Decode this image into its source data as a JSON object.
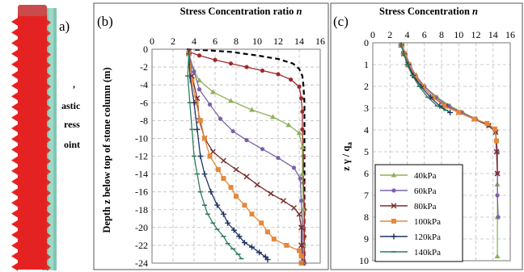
{
  "panel_a": {
    "label": "a)",
    "partial_text": [
      "astic",
      "ress",
      "oint"
    ]
  },
  "chart_data": [
    {
      "type": "line",
      "panel_label": "(b)",
      "title": "Stress Concentration ratio",
      "title_italic": "n",
      "ylabel": "Depth z below top of stone column (m)",
      "xlim": [
        0,
        16
      ],
      "ylim": [
        -24,
        0
      ],
      "x_ticks": [
        0,
        2,
        4,
        6,
        8,
        10,
        12,
        14,
        16
      ],
      "y_ticks": [
        0,
        -2,
        -4,
        -6,
        -8,
        -10,
        -12,
        -14,
        -16,
        -18,
        -20,
        -22,
        -24
      ],
      "x_axis_position": "top",
      "grid": true,
      "series": [
        {
          "color": "#000000",
          "dash": true,
          "marker": "none",
          "points": [
            [
              3.3,
              0
            ],
            [
              5,
              -0.1
            ],
            [
              7.5,
              -0.3
            ],
            [
              10,
              -0.7
            ],
            [
              12,
              -1.1
            ],
            [
              13.4,
              -1.6
            ],
            [
              14,
              -2.2
            ],
            [
              14.3,
              -3
            ],
            [
              14.4,
              -4
            ],
            [
              14.5,
              -6
            ],
            [
              14.5,
              -10
            ],
            [
              14.5,
              -16
            ],
            [
              14.5,
              -22
            ],
            [
              14.5,
              -24
            ]
          ]
        },
        {
          "color": "#9e2a2b",
          "marker": "circle",
          "points": [
            [
              3.5,
              -0.3
            ],
            [
              4.5,
              -0.7
            ],
            [
              6,
              -1.2
            ],
            [
              7.5,
              -1.6
            ],
            [
              9,
              -2
            ],
            [
              10.5,
              -2.4
            ],
            [
              12,
              -2.8
            ],
            [
              13.2,
              -3.4
            ],
            [
              14,
              -4.2
            ],
            [
              14.2,
              -5.5
            ],
            [
              14.3,
              -7
            ],
            [
              14.3,
              -9
            ],
            [
              14.4,
              -12
            ],
            [
              14.4,
              -15
            ],
            [
              14.5,
              -18
            ],
            [
              14.5,
              -21
            ],
            [
              14.5,
              -24
            ]
          ]
        },
        {
          "color": "#8fb05a",
          "marker": "triangle",
          "points": [
            [
              3.5,
              -0.5
            ],
            [
              3.8,
              -2
            ],
            [
              4.5,
              -3.5
            ],
            [
              5.8,
              -4.8
            ],
            [
              7.5,
              -5.8
            ],
            [
              9.5,
              -6.8
            ],
            [
              11.5,
              -7.6
            ],
            [
              13,
              -8.5
            ],
            [
              14,
              -9.4
            ],
            [
              14.3,
              -11
            ],
            [
              14.3,
              -14
            ],
            [
              14.4,
              -18
            ],
            [
              14.4,
              -22
            ],
            [
              14.4,
              -24
            ]
          ]
        },
        {
          "color": "#7b62a8",
          "marker": "circle",
          "points": [
            [
              3.5,
              -0.5
            ],
            [
              4,
              -2.5
            ],
            [
              4.5,
              -4.5
            ],
            [
              5.5,
              -6.2
            ],
            [
              6.5,
              -7.8
            ],
            [
              7.7,
              -9.2
            ],
            [
              9,
              -10.2
            ],
            [
              10.5,
              -11.2
            ],
            [
              12,
              -12.2
            ],
            [
              13.5,
              -13.3
            ],
            [
              14.1,
              -14.5
            ],
            [
              14.2,
              -17
            ],
            [
              14.3,
              -20
            ],
            [
              14.3,
              -22
            ],
            [
              14.4,
              -24
            ]
          ]
        },
        {
          "color": "#7a2a2a",
          "marker": "x",
          "points": [
            [
              3.5,
              -0.5
            ],
            [
              3.8,
              -3
            ],
            [
              4.3,
              -5.5
            ],
            [
              4.5,
              -8
            ],
            [
              5,
              -10
            ],
            [
              5.8,
              -11.5
            ],
            [
              6.8,
              -12.5
            ],
            [
              8,
              -13.5
            ],
            [
              9,
              -14.3
            ],
            [
              10,
              -15.2
            ],
            [
              11.3,
              -16.2
            ],
            [
              12.5,
              -17
            ],
            [
              13.5,
              -17.8
            ],
            [
              14,
              -18.5
            ],
            [
              14.2,
              -20
            ],
            [
              14.2,
              -22
            ],
            [
              14.3,
              -24
            ]
          ]
        },
        {
          "color": "#e4883a",
          "marker": "square",
          "points": [
            [
              3.5,
              -0.5
            ],
            [
              3.8,
              -3.5
            ],
            [
              4.2,
              -6
            ],
            [
              4.6,
              -8
            ],
            [
              5,
              -10
            ],
            [
              5.5,
              -12
            ],
            [
              6.3,
              -13.5
            ],
            [
              6.8,
              -14.5
            ],
            [
              7.5,
              -15.5
            ],
            [
              8,
              -16.5
            ],
            [
              8.8,
              -17.5
            ],
            [
              9.5,
              -18.5
            ],
            [
              10.4,
              -19.5
            ],
            [
              11,
              -20.5
            ],
            [
              11.6,
              -21.3
            ],
            [
              12.8,
              -22
            ],
            [
              14,
              -22.6
            ],
            [
              14.2,
              -23.2
            ],
            [
              14.2,
              -24
            ]
          ]
        },
        {
          "color": "#1f3466",
          "marker": "plus",
          "points": [
            [
              3.5,
              -0.5
            ],
            [
              3.6,
              -3
            ],
            [
              4,
              -6
            ],
            [
              4.3,
              -9
            ],
            [
              4.6,
              -12
            ],
            [
              5,
              -14
            ],
            [
              5.6,
              -16
            ],
            [
              6.2,
              -17.5
            ],
            [
              6.8,
              -18.5
            ],
            [
              7.2,
              -19.5
            ],
            [
              7.8,
              -20.3
            ],
            [
              8.3,
              -21
            ],
            [
              8.8,
              -21.7
            ],
            [
              9.5,
              -22.2
            ],
            [
              10.2,
              -22.8
            ],
            [
              10.8,
              -23.3
            ],
            [
              11,
              -23.6
            ]
          ]
        },
        {
          "color": "#2f7d5c",
          "marker": "dash",
          "points": [
            [
              3.5,
              -0.5
            ],
            [
              3.4,
              -3
            ],
            [
              3.6,
              -6
            ],
            [
              3.8,
              -9
            ],
            [
              4,
              -12
            ],
            [
              4.3,
              -14
            ],
            [
              4.6,
              -16
            ],
            [
              5,
              -17.5
            ],
            [
              5.3,
              -18.5
            ],
            [
              5.8,
              -19.5
            ],
            [
              6.2,
              -20.2
            ],
            [
              6.8,
              -21
            ],
            [
              7.2,
              -21.8
            ],
            [
              7.7,
              -22.4
            ],
            [
              8.2,
              -23
            ],
            [
              8.5,
              -23.5
            ]
          ]
        }
      ]
    },
    {
      "type": "scatter",
      "panel_label": "(c)",
      "title": "Stress Concentration",
      "title_italic": "n",
      "ylabel": "z γ / q",
      "ylabel_sub": "a",
      "xlim": [
        0,
        16
      ],
      "ylim": [
        10,
        0
      ],
      "x_ticks": [
        0,
        2,
        4,
        6,
        8,
        10,
        12,
        14,
        16
      ],
      "y_ticks": [
        0,
        1,
        2,
        3,
        4,
        5,
        6,
        7,
        8,
        9,
        10
      ],
      "x_axis_position": "top",
      "grid": true,
      "legend_position": "bottom-left",
      "legend": [
        "40kPa",
        "60kPa",
        "80kPa",
        "100kPa",
        "120kPa",
        "140kPa"
      ],
      "series": [
        {
          "name": "40kPa",
          "color": "#8fb05a",
          "marker": "triangle",
          "points": [
            [
              3.4,
              0.1
            ],
            [
              3.8,
              0.5
            ],
            [
              4.3,
              1
            ],
            [
              5,
              1.5
            ],
            [
              6,
              2
            ],
            [
              7.5,
              2.5
            ],
            [
              9,
              2.9
            ],
            [
              10.5,
              3.2
            ],
            [
              12,
              3.5
            ],
            [
              13.5,
              3.75
            ],
            [
              14.3,
              4
            ],
            [
              14.5,
              5
            ],
            [
              14.5,
              6.5
            ],
            [
              14.5,
              8
            ],
            [
              14.5,
              9.8
            ]
          ]
        },
        {
          "name": "60kPa",
          "color": "#7b62a8",
          "marker": "circle",
          "points": [
            [
              3.4,
              0.1
            ],
            [
              3.8,
              0.5
            ],
            [
              4.3,
              1
            ],
            [
              5,
              1.5
            ],
            [
              6,
              2
            ],
            [
              7.3,
              2.5
            ],
            [
              8.8,
              2.9
            ],
            [
              10.3,
              3.2
            ],
            [
              12,
              3.5
            ],
            [
              13.5,
              3.8
            ],
            [
              14.3,
              4.1
            ],
            [
              14.5,
              5
            ],
            [
              14.5,
              6
            ],
            [
              14.5,
              7
            ],
            [
              14.6,
              8
            ]
          ]
        },
        {
          "name": "80kPa",
          "color": "#7a2a2a",
          "marker": "x",
          "points": [
            [
              3.3,
              0.1
            ],
            [
              3.6,
              0.5
            ],
            [
              4.1,
              1
            ],
            [
              4.8,
              1.5
            ],
            [
              5.8,
              2
            ],
            [
              7,
              2.5
            ],
            [
              8.5,
              2.9
            ],
            [
              10,
              3.2
            ],
            [
              11.8,
              3.5
            ],
            [
              13.5,
              3.8
            ],
            [
              14.3,
              4.1
            ],
            [
              14.4,
              5
            ],
            [
              14.5,
              6
            ]
          ]
        },
        {
          "name": "100kPa",
          "color": "#e4883a",
          "marker": "square",
          "points": [
            [
              3.4,
              0.1
            ],
            [
              3.7,
              0.5
            ],
            [
              4.2,
              1
            ],
            [
              4.9,
              1.5
            ],
            [
              5.8,
              2
            ],
            [
              7,
              2.5
            ],
            [
              8.3,
              2.9
            ],
            [
              10,
              3.2
            ],
            [
              11.8,
              3.5
            ],
            [
              13.3,
              3.7
            ],
            [
              14.2,
              3.95
            ],
            [
              14.4,
              4.5
            ]
          ]
        },
        {
          "name": "120kPa",
          "color": "#1f3466",
          "marker": "plus",
          "points": [
            [
              3.3,
              0.1
            ],
            [
              3.6,
              0.5
            ],
            [
              4.1,
              1
            ],
            [
              4.7,
              1.5
            ],
            [
              5.6,
              2
            ],
            [
              6.7,
              2.5
            ],
            [
              7.8,
              2.9
            ],
            [
              9,
              3.2
            ]
          ]
        },
        {
          "name": "140kPa",
          "color": "#2f7d5c",
          "marker": "dash",
          "points": [
            [
              3.3,
              0.1
            ],
            [
              3.6,
              0.5
            ],
            [
              4,
              1
            ],
            [
              4.6,
              1.5
            ],
            [
              5.4,
              2
            ],
            [
              6.4,
              2.5
            ],
            [
              7.5,
              2.9
            ],
            [
              8.5,
              3.1
            ]
          ]
        }
      ]
    }
  ]
}
